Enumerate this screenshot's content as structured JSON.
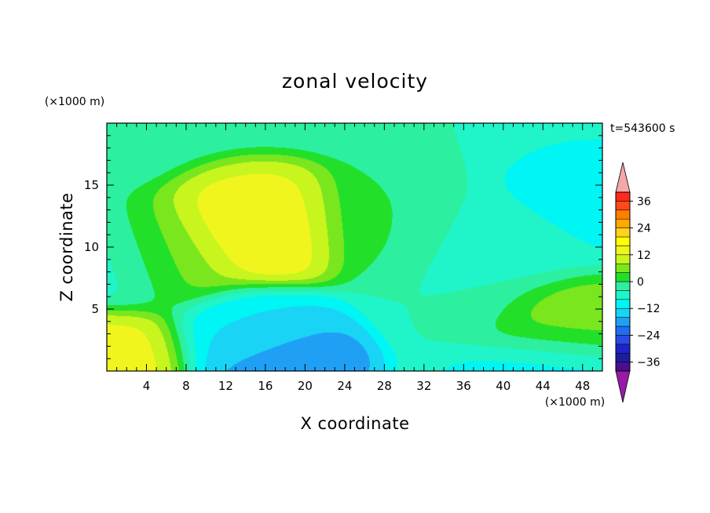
{
  "chart_data": {
    "type": "heatmap",
    "title": "zonal velocity",
    "xlabel": "X coordinate",
    "ylabel": "Z coordinate",
    "x_unit": "(×1000 m)",
    "y_unit": "(×1000 m)",
    "time_label": "t=543600 s",
    "xlim": [
      0,
      50
    ],
    "ylim": [
      0,
      20
    ],
    "x_ticks": [
      4,
      8,
      12,
      16,
      20,
      24,
      28,
      32,
      36,
      40,
      44,
      48
    ],
    "y_ticks": [
      5,
      10,
      15
    ],
    "colorbar": {
      "levels": [
        -40,
        -36,
        -32,
        -28,
        -24,
        -20,
        -16,
        -12,
        -8,
        -4,
        0,
        4,
        8,
        12,
        16,
        20,
        24,
        28,
        32,
        36,
        40
      ],
      "colors": [
        "#4b0e8c",
        "#1c1ca0",
        "#1f24c8",
        "#2a4ae6",
        "#1e6ef0",
        "#1fa0f5",
        "#19d4f5",
        "#00f5f5",
        "#1ff5c8",
        "#2cf0a0",
        "#22e02a",
        "#7ae61e",
        "#c8f51e",
        "#f0f51e",
        "#ffff00",
        "#ffd21e",
        "#ffa800",
        "#ff7e00",
        "#ff4a1a",
        "#ff2a1a"
      ],
      "tick_labels": [
        "36",
        "24",
        "12",
        "0",
        "−12",
        "−24",
        "−36"
      ],
      "tick_values": [
        36,
        24,
        12,
        0,
        -12,
        -24,
        -36
      ],
      "over_color": "#f5a8a8",
      "under_color": "#9a1aa8"
    },
    "features": [
      {
        "x": 16,
        "z": 11.5,
        "value": 18
      },
      {
        "x": 16,
        "z": 12,
        "value": 12
      },
      {
        "x": 6,
        "z": 9.5,
        "value": 8
      },
      {
        "x": 27,
        "z": 12,
        "value": 0
      },
      {
        "x": 17,
        "z": 1,
        "value": -22
      },
      {
        "x": 15,
        "z": 2.5,
        "value": -10
      },
      {
        "x": 0.5,
        "z": 1,
        "value": 14
      },
      {
        "x": 1,
        "z": 9,
        "value": -8
      },
      {
        "x": 45,
        "z": 3.5,
        "value": 8
      },
      {
        "x": 44,
        "z": 0.5,
        "value": -12
      },
      {
        "x": 49,
        "z": 14,
        "value": -10
      },
      {
        "x": 40,
        "z": 10,
        "value": -6
      },
      {
        "x": 36,
        "z": 6,
        "value": -4
      }
    ]
  }
}
